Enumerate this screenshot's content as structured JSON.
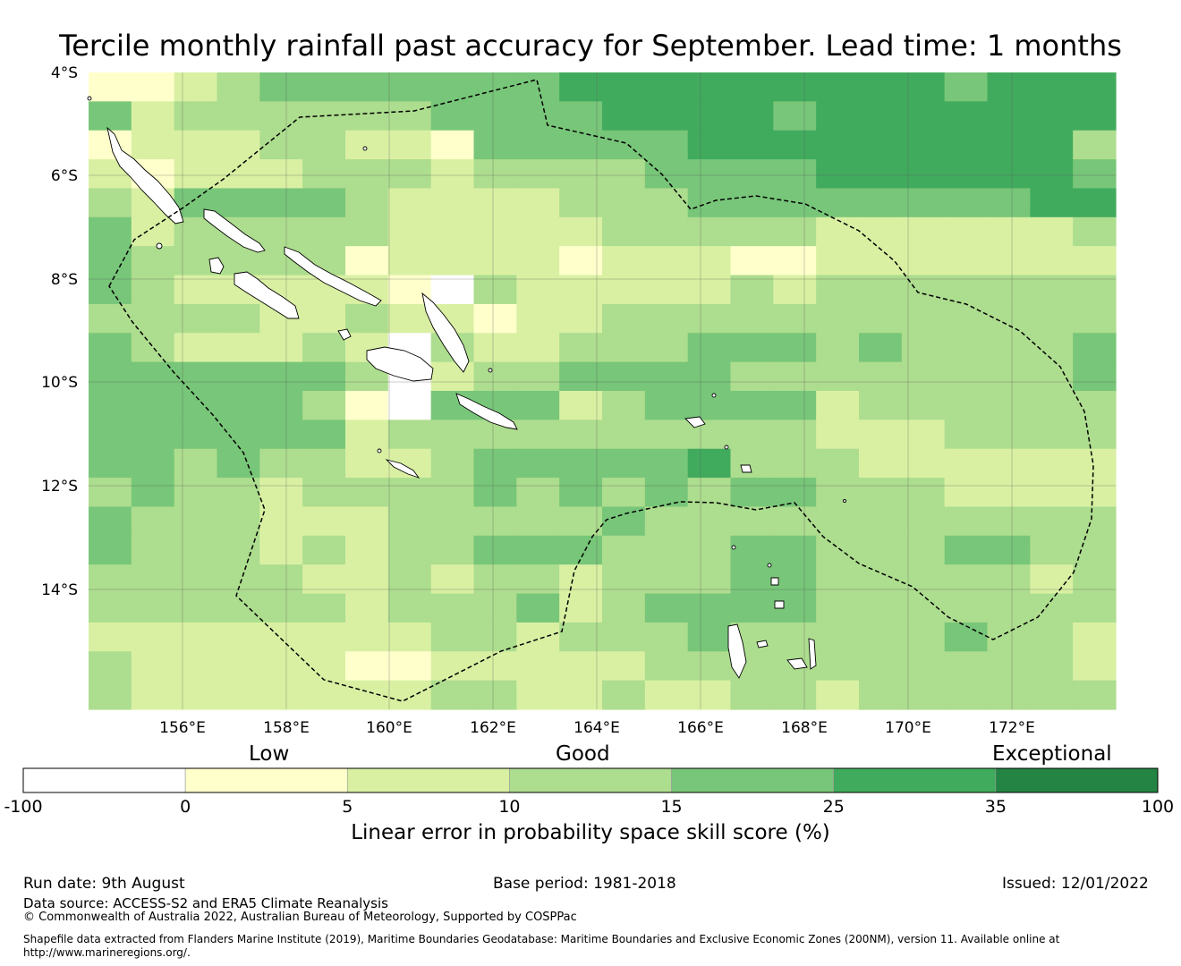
{
  "title": "Tercile monthly rainfall past accuracy for September. Lead time: 1 months",
  "map": {
    "lat_labels": [
      "4°S",
      "6°S",
      "8°S",
      "10°S",
      "12°S",
      "14°S"
    ],
    "lon_labels": [
      "156°E",
      "158°E",
      "160°E",
      "162°E",
      "164°E",
      "166°E",
      "168°E",
      "170°E",
      "172°E"
    ]
  },
  "colorbar": {
    "category_labels": {
      "low": "Low",
      "good": "Good",
      "exceptional": "Exceptional"
    },
    "tick_labels": [
      "-100",
      "0",
      "5",
      "10",
      "15",
      "25",
      "35",
      "100"
    ],
    "colors": [
      "#ffffff",
      "#ffffcc",
      "#d9f0a3",
      "#addd8e",
      "#78c679",
      "#41ab5d",
      "#238443"
    ],
    "label": "Linear error in probability space skill score (%)"
  },
  "grid": {
    "cols": 24,
    "rows": 22,
    "rows_levels": [
      "112344444445555555554555",
      "423333334444555545555555",
      "122233221444445555555553",
      "212223332333344445555554",
      "324444322223334444444455",
      "423333322222333332222223",
      "433333122221222112222222",
      "432222210322222323333333",
      "333322322122333333333333",
      "432223203223334443433334",
      "444444302334444333333334",
      "444443104442344442333333",
      "444444233333333332223333",
      "443433223444445333222222",
      "343323333434343443332222",
      "433322233333433333333333",
      "433323233444333443334433",
      "333332232332333443333323",
      "333333233342344443333333",
      "222222223323334333334332",
      "322222112222233333333332",
      "322222223322322332333333"
    ]
  },
  "footer": {
    "run_date": "Run date: 9th August",
    "base_period": "Base period: 1981-2018",
    "issued": "Issued: 12/01/2022",
    "data_source": "Data source: ACCESS-S2 and ERA5 Climate Reanalysis",
    "copyright": "© Commonwealth of Australia 2022, Australian Bureau of Meteorology, Supported by COSPPac",
    "shapefile_line1": "Shapefile data extracted from Flanders Marine Institute (2019), Maritime Boundaries Geodatabase: Maritime Boundaries and Exclusive Economic Zones (200NM), version 11. Available online at",
    "shapefile_line2": "http://www.marineregions.org/."
  }
}
